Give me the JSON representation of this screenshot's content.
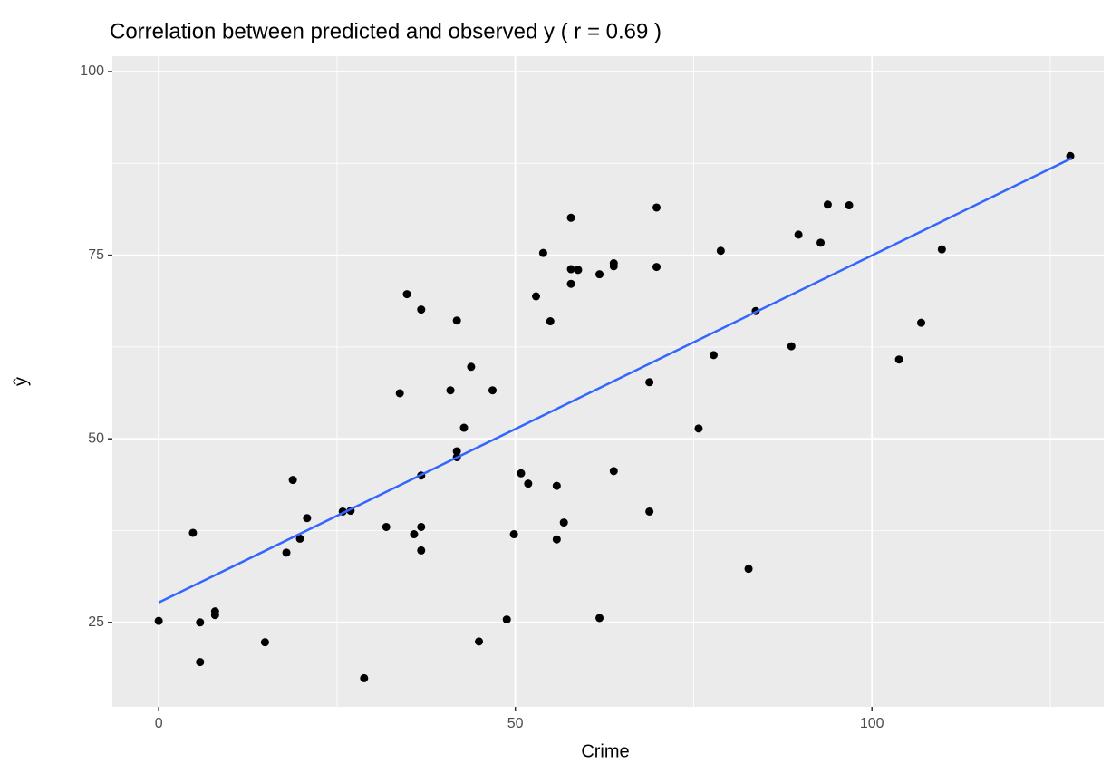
{
  "chart_data": {
    "type": "scatter",
    "title": "Correlation between predicted and observed y ( r = 0.69 )",
    "x_label": "Crime",
    "y_label": "ŷ",
    "xlim": [
      -6.5,
      132.5
    ],
    "ylim": [
      13.5,
      102.1
    ],
    "xticks": [
      0,
      50,
      100
    ],
    "yticks": [
      25,
      50,
      75,
      100
    ],
    "x_minor_grid": [
      25,
      75,
      125
    ],
    "y_minor_grid": [
      37.5,
      62.5,
      87.5
    ],
    "grid": true,
    "color": "#000000",
    "x": [
      0,
      4.8,
      5.8,
      5.8,
      7.9,
      7.9,
      14.9,
      17.9,
      18.8,
      19.8,
      20.8,
      25.8,
      26.9,
      28.8,
      31.9,
      33.8,
      34.8,
      35.8,
      36.8,
      36.8,
      36.8,
      36.8,
      40.9,
      41.8,
      41.8,
      41.8,
      42.8,
      43.8,
      44.9,
      46.8,
      48.8,
      49.8,
      50.8,
      51.8,
      52.9,
      53.9,
      54.9,
      55.8,
      55.8,
      56.8,
      57.8,
      57.8,
      57.8,
      58.8,
      61.8,
      61.8,
      63.8,
      63.8,
      63.8,
      68.8,
      68.8,
      69.8,
      69.8,
      75.7,
      77.8,
      78.8,
      82.7,
      83.7,
      88.7,
      89.7,
      92.8,
      93.8,
      96.8,
      103.8,
      106.9,
      109.8,
      127.8
    ],
    "values": [
      25.2,
      37.2,
      25.0,
      19.6,
      26.5,
      26.0,
      22.3,
      34.5,
      44.4,
      36.4,
      39.2,
      40.1,
      40.2,
      17.4,
      38.0,
      56.2,
      69.7,
      37.0,
      67.6,
      45.0,
      38.0,
      34.8,
      56.6,
      66.1,
      48.3,
      47.5,
      51.5,
      59.8,
      22.4,
      56.6,
      25.4,
      37.0,
      45.3,
      43.9,
      69.4,
      75.3,
      66.0,
      43.6,
      36.3,
      38.6,
      80.1,
      73.1,
      71.1,
      73.0,
      72.4,
      25.6,
      73.9,
      73.5,
      45.6,
      57.7,
      40.1,
      81.5,
      73.4,
      51.4,
      61.4,
      75.6,
      32.3,
      67.4,
      62.6,
      77.8,
      76.7,
      81.9,
      81.8,
      60.8,
      65.8,
      75.8,
      88.5
    ],
    "fit_line": {
      "x": [
        0,
        128
      ],
      "values": [
        27.7,
        88.2
      ],
      "color": "#3366ff"
    }
  }
}
